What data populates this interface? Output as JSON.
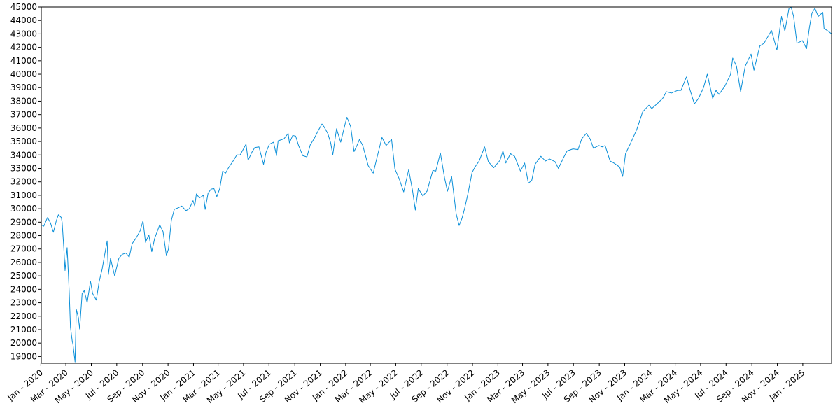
{
  "chart_data": {
    "type": "line",
    "title": "",
    "xlabel": "",
    "ylabel": "",
    "xlim": [
      "2020-01-02",
      "2025-03-11"
    ],
    "ylim": [
      18500,
      45000
    ],
    "grid": false,
    "legend": "none",
    "colors": {
      "series": "#0a8fd8",
      "axes": "#000000",
      "background": "#ffffff"
    },
    "y_ticks": [
      19000,
      20000,
      21000,
      22000,
      23000,
      24000,
      25000,
      26000,
      27000,
      28000,
      29000,
      30000,
      31000,
      32000,
      33000,
      34000,
      35000,
      36000,
      37000,
      38000,
      39000,
      40000,
      41000,
      42000,
      43000,
      44000,
      45000
    ],
    "x_ticks": [
      {
        "date": "2020-01-01",
        "label": "Jan - 2020"
      },
      {
        "date": "2020-03-01",
        "label": "Mar - 2020"
      },
      {
        "date": "2020-05-01",
        "label": "May - 2020"
      },
      {
        "date": "2020-07-01",
        "label": "Jul - 2020"
      },
      {
        "date": "2020-09-01",
        "label": "Sep - 2020"
      },
      {
        "date": "2020-11-01",
        "label": "Nov - 2020"
      },
      {
        "date": "2021-01-01",
        "label": "Jan - 2021"
      },
      {
        "date": "2021-03-01",
        "label": "Mar - 2021"
      },
      {
        "date": "2021-05-01",
        "label": "May - 2021"
      },
      {
        "date": "2021-07-01",
        "label": "Jul - 2021"
      },
      {
        "date": "2021-09-01",
        "label": "Sep - 2021"
      },
      {
        "date": "2021-11-01",
        "label": "Nov - 2021"
      },
      {
        "date": "2022-01-01",
        "label": "Jan - 2022"
      },
      {
        "date": "2022-03-01",
        "label": "Mar - 2022"
      },
      {
        "date": "2022-05-01",
        "label": "May - 2022"
      },
      {
        "date": "2022-07-01",
        "label": "Jul - 2022"
      },
      {
        "date": "2022-09-01",
        "label": "Sep - 2022"
      },
      {
        "date": "2022-11-01",
        "label": "Nov - 2022"
      },
      {
        "date": "2023-01-01",
        "label": "Jan - 2023"
      },
      {
        "date": "2023-03-01",
        "label": "Mar - 2023"
      },
      {
        "date": "2023-05-01",
        "label": "May - 2023"
      },
      {
        "date": "2023-07-01",
        "label": "Jul - 2023"
      },
      {
        "date": "2023-09-01",
        "label": "Sep - 2023"
      },
      {
        "date": "2023-11-01",
        "label": "Nov - 2023"
      },
      {
        "date": "2024-01-01",
        "label": "Jan - 2024"
      },
      {
        "date": "2024-03-01",
        "label": "Mar - 2024"
      },
      {
        "date": "2024-05-01",
        "label": "May - 2024"
      },
      {
        "date": "2024-07-01",
        "label": "Jul - 2024"
      },
      {
        "date": "2024-09-01",
        "label": "Sep - 2024"
      },
      {
        "date": "2024-11-01",
        "label": "Nov - 2024"
      },
      {
        "date": "2025-01-01",
        "label": "Jan - 2025"
      }
    ],
    "series": [
      {
        "points": [
          [
            "2020-01-02",
            28800
          ],
          [
            "2020-01-08",
            28700
          ],
          [
            "2020-01-17",
            29350
          ],
          [
            "2020-01-24",
            28950
          ],
          [
            "2020-01-31",
            28250
          ],
          [
            "2020-02-07",
            29100
          ],
          [
            "2020-02-12",
            29550
          ],
          [
            "2020-02-19",
            29350
          ],
          [
            "2020-02-21",
            29000
          ],
          [
            "2020-02-25",
            27100
          ],
          [
            "2020-02-28",
            25400
          ],
          [
            "2020-03-04",
            27100
          ],
          [
            "2020-03-09",
            23800
          ],
          [
            "2020-03-12",
            21200
          ],
          [
            "2020-03-16",
            20200
          ],
          [
            "2020-03-18",
            19900
          ],
          [
            "2020-03-23",
            18600
          ],
          [
            "2020-03-26",
            22500
          ],
          [
            "2020-03-31",
            21900
          ],
          [
            "2020-04-03",
            21050
          ],
          [
            "2020-04-09",
            23700
          ],
          [
            "2020-04-14",
            23900
          ],
          [
            "2020-04-21",
            23000
          ],
          [
            "2020-04-29",
            24600
          ],
          [
            "2020-05-04",
            23700
          ],
          [
            "2020-05-13",
            23200
          ],
          [
            "2020-05-20",
            24600
          ],
          [
            "2020-05-27",
            25500
          ],
          [
            "2020-06-05",
            27100
          ],
          [
            "2020-06-08",
            27600
          ],
          [
            "2020-06-11",
            25100
          ],
          [
            "2020-06-16",
            26300
          ],
          [
            "2020-06-26",
            25000
          ],
          [
            "2020-07-06",
            26300
          ],
          [
            "2020-07-14",
            26600
          ],
          [
            "2020-07-23",
            26700
          ],
          [
            "2020-07-31",
            26400
          ],
          [
            "2020-08-07",
            27400
          ],
          [
            "2020-08-17",
            27850
          ],
          [
            "2020-08-26",
            28350
          ],
          [
            "2020-09-02",
            29100
          ],
          [
            "2020-09-08",
            27500
          ],
          [
            "2020-09-16",
            28050
          ],
          [
            "2020-09-23",
            26800
          ],
          [
            "2020-09-30",
            27800
          ],
          [
            "2020-10-12",
            28800
          ],
          [
            "2020-10-20",
            28300
          ],
          [
            "2020-10-28",
            26500
          ],
          [
            "2020-11-02",
            27000
          ],
          [
            "2020-11-09",
            29150
          ],
          [
            "2020-11-16",
            29950
          ],
          [
            "2020-11-24",
            30050
          ],
          [
            "2020-12-04",
            30200
          ],
          [
            "2020-12-14",
            29850
          ],
          [
            "2020-12-22",
            30000
          ],
          [
            "2020-12-31",
            30600
          ],
          [
            "2021-01-04",
            30200
          ],
          [
            "2021-01-08",
            31100
          ],
          [
            "2021-01-15",
            30800
          ],
          [
            "2021-01-25",
            31000
          ],
          [
            "2021-01-29",
            29950
          ],
          [
            "2021-02-05",
            31150
          ],
          [
            "2021-02-12",
            31450
          ],
          [
            "2021-02-19",
            31500
          ],
          [
            "2021-02-26",
            30900
          ],
          [
            "2021-03-05",
            31500
          ],
          [
            "2021-03-12",
            32800
          ],
          [
            "2021-03-19",
            32650
          ],
          [
            "2021-03-26",
            33050
          ],
          [
            "2021-04-05",
            33500
          ],
          [
            "2021-04-15",
            34000
          ],
          [
            "2021-04-23",
            34000
          ],
          [
            "2021-05-07",
            34800
          ],
          [
            "2021-05-12",
            33600
          ],
          [
            "2021-05-21",
            34200
          ],
          [
            "2021-05-28",
            34550
          ],
          [
            "2021-06-07",
            34600
          ],
          [
            "2021-06-18",
            33300
          ],
          [
            "2021-06-24",
            34200
          ],
          [
            "2021-07-02",
            34800
          ],
          [
            "2021-07-12",
            34950
          ],
          [
            "2021-07-19",
            33950
          ],
          [
            "2021-07-23",
            35050
          ],
          [
            "2021-08-06",
            35200
          ],
          [
            "2021-08-16",
            35600
          ],
          [
            "2021-08-19",
            34900
          ],
          [
            "2021-08-27",
            35450
          ],
          [
            "2021-09-03",
            35400
          ],
          [
            "2021-09-10",
            34700
          ],
          [
            "2021-09-20",
            33950
          ],
          [
            "2021-09-30",
            33850
          ],
          [
            "2021-10-08",
            34750
          ],
          [
            "2021-10-18",
            35250
          ],
          [
            "2021-10-26",
            35750
          ],
          [
            "2021-11-05",
            36300
          ],
          [
            "2021-11-10",
            36100
          ],
          [
            "2021-11-19",
            35600
          ],
          [
            "2021-11-26",
            34900
          ],
          [
            "2021-12-01",
            34000
          ],
          [
            "2021-12-10",
            35950
          ],
          [
            "2021-12-20",
            34950
          ],
          [
            "2021-12-31",
            36350
          ],
          [
            "2022-01-04",
            36800
          ],
          [
            "2022-01-13",
            36100
          ],
          [
            "2022-01-21",
            34250
          ],
          [
            "2022-01-28",
            34700
          ],
          [
            "2022-02-03",
            35150
          ],
          [
            "2022-02-11",
            34700
          ],
          [
            "2022-02-24",
            33200
          ],
          [
            "2022-03-08",
            32650
          ],
          [
            "2022-03-15",
            33550
          ],
          [
            "2022-03-29",
            35300
          ],
          [
            "2022-04-08",
            34700
          ],
          [
            "2022-04-21",
            35150
          ],
          [
            "2022-04-29",
            32950
          ],
          [
            "2022-05-09",
            32250
          ],
          [
            "2022-05-20",
            31250
          ],
          [
            "2022-06-01",
            32900
          ],
          [
            "2022-06-10",
            31400
          ],
          [
            "2022-06-17",
            29900
          ],
          [
            "2022-06-24",
            31500
          ],
          [
            "2022-07-05",
            30950
          ],
          [
            "2022-07-15",
            31300
          ],
          [
            "2022-07-29",
            32850
          ],
          [
            "2022-08-05",
            32800
          ],
          [
            "2022-08-16",
            34150
          ],
          [
            "2022-08-26",
            32300
          ],
          [
            "2022-09-02",
            31300
          ],
          [
            "2022-09-12",
            32400
          ],
          [
            "2022-09-23",
            29600
          ],
          [
            "2022-09-30",
            28750
          ],
          [
            "2022-10-07",
            29300
          ],
          [
            "2022-10-13",
            30000
          ],
          [
            "2022-10-21",
            31100
          ],
          [
            "2022-10-31",
            32700
          ],
          [
            "2022-11-08",
            33150
          ],
          [
            "2022-11-17",
            33550
          ],
          [
            "2022-11-30",
            34600
          ],
          [
            "2022-12-09",
            33500
          ],
          [
            "2022-12-22",
            33050
          ],
          [
            "2023-01-06",
            33600
          ],
          [
            "2023-01-13",
            34300
          ],
          [
            "2023-01-20",
            33400
          ],
          [
            "2023-01-31",
            34100
          ],
          [
            "2023-02-10",
            33900
          ],
          [
            "2023-02-24",
            32800
          ],
          [
            "2023-03-06",
            33400
          ],
          [
            "2023-03-15",
            31900
          ],
          [
            "2023-03-23",
            32100
          ],
          [
            "2023-03-31",
            33300
          ],
          [
            "2023-04-14",
            33900
          ],
          [
            "2023-04-25",
            33550
          ],
          [
            "2023-05-05",
            33700
          ],
          [
            "2023-05-18",
            33500
          ],
          [
            "2023-05-26",
            33000
          ],
          [
            "2023-06-09",
            33900
          ],
          [
            "2023-06-16",
            34300
          ],
          [
            "2023-06-30",
            34450
          ],
          [
            "2023-07-12",
            34400
          ],
          [
            "2023-07-21",
            35200
          ],
          [
            "2023-08-01",
            35600
          ],
          [
            "2023-08-10",
            35200
          ],
          [
            "2023-08-18",
            34500
          ],
          [
            "2023-08-31",
            34700
          ],
          [
            "2023-09-08",
            34600
          ],
          [
            "2023-09-15",
            34700
          ],
          [
            "2023-09-27",
            33550
          ],
          [
            "2023-10-06",
            33400
          ],
          [
            "2023-10-20",
            33100
          ],
          [
            "2023-10-27",
            32400
          ],
          [
            "2023-11-03",
            34100
          ],
          [
            "2023-11-14",
            34800
          ],
          [
            "2023-11-30",
            35900
          ],
          [
            "2023-12-14",
            37200
          ],
          [
            "2023-12-29",
            37700
          ],
          [
            "2024-01-05",
            37450
          ],
          [
            "2024-01-19",
            37850
          ],
          [
            "2024-01-31",
            38200
          ],
          [
            "2024-02-09",
            38700
          ],
          [
            "2024-02-21",
            38600
          ],
          [
            "2024-03-07",
            38800
          ],
          [
            "2024-03-15",
            38800
          ],
          [
            "2024-03-28",
            39800
          ],
          [
            "2024-04-05",
            38900
          ],
          [
            "2024-04-16",
            37800
          ],
          [
            "2024-04-26",
            38200
          ],
          [
            "2024-05-08",
            39000
          ],
          [
            "2024-05-17",
            40000
          ],
          [
            "2024-05-30",
            38200
          ],
          [
            "2024-06-07",
            38800
          ],
          [
            "2024-06-14",
            38500
          ],
          [
            "2024-06-28",
            39100
          ],
          [
            "2024-07-12",
            40000
          ],
          [
            "2024-07-17",
            41200
          ],
          [
            "2024-07-26",
            40600
          ],
          [
            "2024-08-05",
            38700
          ],
          [
            "2024-08-16",
            40600
          ],
          [
            "2024-08-30",
            41500
          ],
          [
            "2024-09-06",
            40300
          ],
          [
            "2024-09-20",
            42100
          ],
          [
            "2024-09-30",
            42300
          ],
          [
            "2024-10-18",
            43250
          ],
          [
            "2024-10-31",
            41800
          ],
          [
            "2024-11-11",
            44300
          ],
          [
            "2024-11-19",
            43200
          ],
          [
            "2024-11-29",
            44900
          ],
          [
            "2024-12-04",
            45000
          ],
          [
            "2024-12-10",
            44300
          ],
          [
            "2024-12-18",
            42300
          ],
          [
            "2024-12-31",
            42500
          ],
          [
            "2025-01-10",
            41900
          ],
          [
            "2025-01-17",
            43500
          ],
          [
            "2025-01-23",
            44550
          ],
          [
            "2025-01-30",
            44900
          ],
          [
            "2025-02-07",
            44300
          ],
          [
            "2025-02-18",
            44600
          ],
          [
            "2025-02-21",
            43400
          ],
          [
            "2025-03-03",
            43200
          ],
          [
            "2025-03-11",
            43000
          ]
        ]
      }
    ]
  }
}
